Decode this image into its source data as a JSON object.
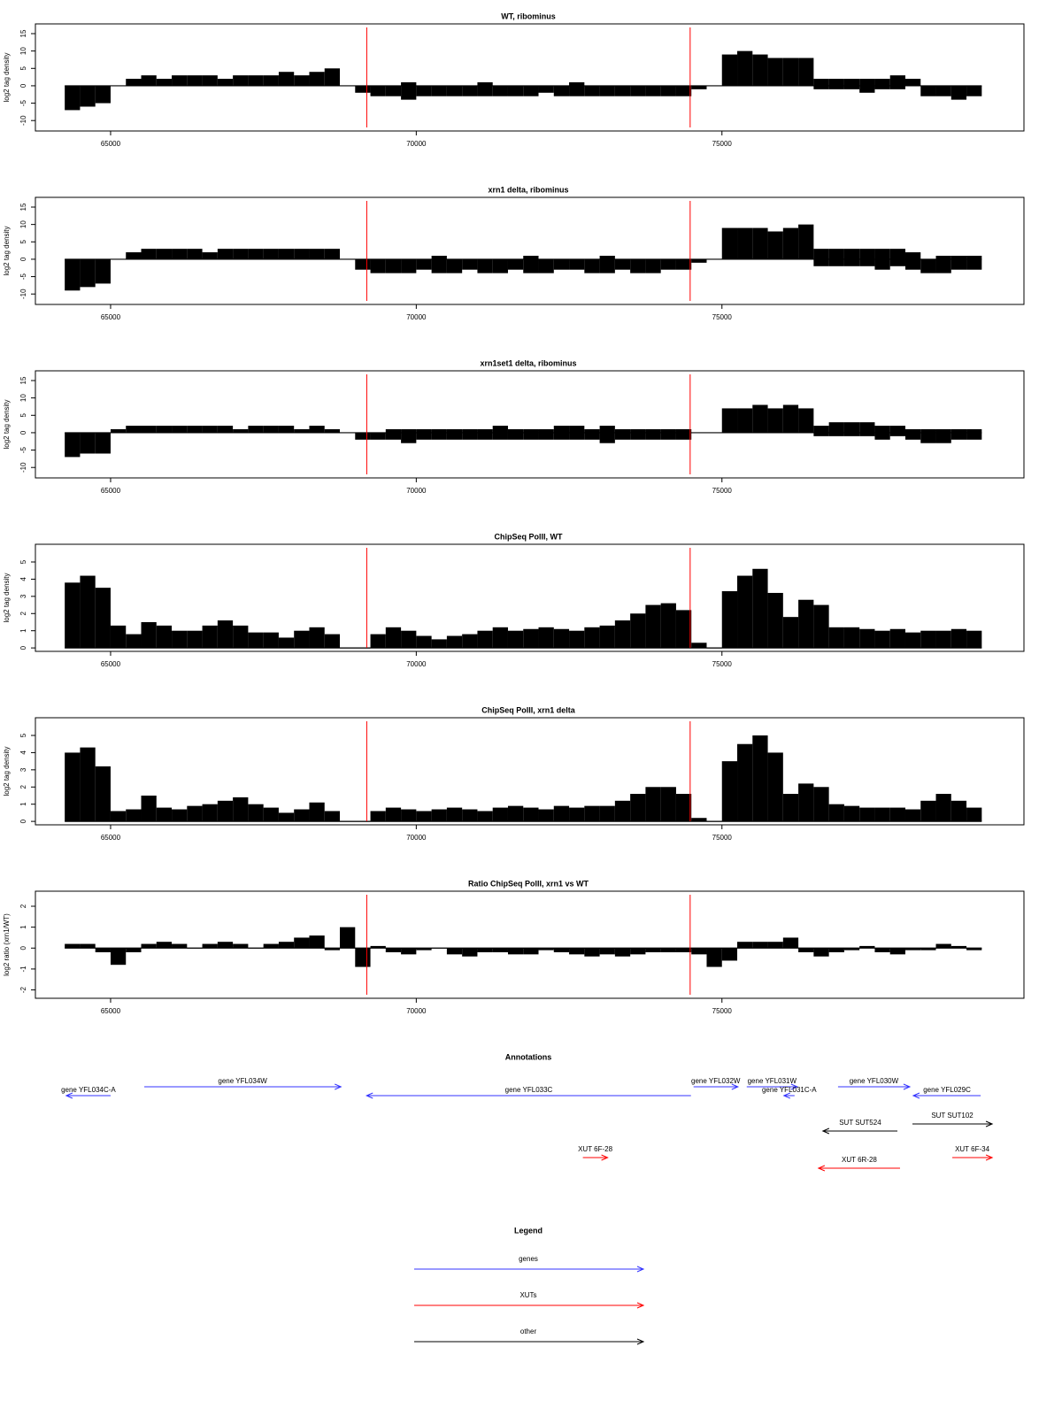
{
  "chart_data": [
    {
      "type": "bar",
      "title": "WT, ribominus",
      "y_label": "log2 tag density",
      "x": [
        64375,
        64625,
        64875,
        65125,
        65375,
        65625,
        65875,
        66125,
        66375,
        66625,
        66875,
        67125,
        67375,
        67625,
        67875,
        68125,
        68375,
        68625,
        68875,
        69125,
        69375,
        69625,
        69875,
        70125,
        70375,
        70625,
        70875,
        71125,
        71375,
        71625,
        71875,
        72125,
        72375,
        72625,
        72875,
        73125,
        73375,
        73625,
        73875,
        74125,
        74375,
        74625,
        74875,
        75125,
        75375,
        75625,
        75875,
        76125,
        76375,
        76625,
        76875,
        77125,
        77375,
        77625,
        77875,
        78125,
        78375,
        78625,
        78875,
        79125
      ],
      "series": [
        {
          "color": "#000000",
          "values": [
            0,
            0,
            0,
            0,
            2,
            3,
            2,
            3,
            3,
            3,
            2,
            3,
            3,
            3,
            4,
            3,
            4,
            5,
            0,
            0,
            0,
            0,
            1,
            0,
            0,
            0,
            0,
            1,
            0,
            0,
            0,
            0,
            0,
            1,
            0,
            0,
            0,
            0,
            0,
            0,
            0,
            0,
            0,
            9,
            10,
            9,
            8,
            8,
            8,
            2,
            2,
            2,
            2,
            2,
            3,
            2,
            0,
            0,
            0,
            0
          ]
        },
        {
          "color": "#000000",
          "values": [
            -7,
            -6,
            -5,
            0,
            0,
            0,
            0,
            0,
            0,
            0,
            0,
            0,
            0,
            0,
            0,
            0,
            0,
            0,
            0,
            -2,
            -3,
            -3,
            -4,
            -3,
            -3,
            -3,
            -3,
            -3,
            -3,
            -3,
            -3,
            -2,
            -3,
            -3,
            -3,
            -3,
            -3,
            -3,
            -3,
            -3,
            -3,
            -1,
            0,
            0,
            0,
            0,
            0,
            0,
            0,
            -1,
            -1,
            -1,
            -2,
            -1,
            -1,
            0,
            -3,
            -3,
            -4,
            -3
          ]
        }
      ],
      "xlim": [
        63770,
        79940
      ],
      "xticks": [
        65000,
        70000,
        75000
      ],
      "ylim": [
        -13,
        17.8
      ],
      "yticks": [
        -10,
        -5,
        0,
        5,
        10,
        15
      ],
      "reference_lines": [
        69190,
        74480
      ],
      "reference_color": "#ff0000"
    },
    {
      "type": "bar",
      "title": "xrn1 delta, ribominus",
      "y_label": "log2 tag density",
      "x": [
        64375,
        64625,
        64875,
        65125,
        65375,
        65625,
        65875,
        66125,
        66375,
        66625,
        66875,
        67125,
        67375,
        67625,
        67875,
        68125,
        68375,
        68625,
        68875,
        69125,
        69375,
        69625,
        69875,
        70125,
        70375,
        70625,
        70875,
        71125,
        71375,
        71625,
        71875,
        72125,
        72375,
        72625,
        72875,
        73125,
        73375,
        73625,
        73875,
        74125,
        74375,
        74625,
        74875,
        75125,
        75375,
        75625,
        75875,
        76125,
        76375,
        76625,
        76875,
        77125,
        77375,
        77625,
        77875,
        78125,
        78375,
        78625,
        78875,
        79125
      ],
      "series": [
        {
          "color": "#000000",
          "values": [
            0,
            0,
            0,
            0,
            2,
            3,
            3,
            3,
            3,
            2,
            3,
            3,
            3,
            3,
            3,
            3,
            3,
            3,
            0,
            0,
            0,
            0,
            0,
            0,
            1,
            0,
            0,
            0,
            0,
            0,
            1,
            0,
            0,
            0,
            0,
            1,
            0,
            0,
            0,
            0,
            0,
            0,
            0,
            9,
            9,
            9,
            8,
            9,
            10,
            3,
            3,
            3,
            3,
            3,
            3,
            2,
            0,
            1,
            1,
            1
          ]
        },
        {
          "color": "#000000",
          "values": [
            -9,
            -8,
            -7,
            0,
            0,
            0,
            0,
            0,
            0,
            0,
            0,
            0,
            0,
            0,
            0,
            0,
            0,
            0,
            0,
            -3,
            -4,
            -4,
            -4,
            -3,
            -4,
            -4,
            -3,
            -4,
            -4,
            -3,
            -4,
            -4,
            -3,
            -3,
            -4,
            -4,
            -3,
            -4,
            -4,
            -3,
            -3,
            -1,
            0,
            0,
            0,
            0,
            0,
            0,
            0,
            -2,
            -2,
            -2,
            -2,
            -3,
            -2,
            -3,
            -4,
            -4,
            -3,
            -3
          ]
        }
      ],
      "xlim": [
        63770,
        79940
      ],
      "xticks": [
        65000,
        70000,
        75000
      ],
      "ylim": [
        -13,
        17.8
      ],
      "yticks": [
        -10,
        -5,
        0,
        5,
        10,
        15
      ],
      "reference_lines": [
        69190,
        74480
      ],
      "reference_color": "#ff0000"
    },
    {
      "type": "bar",
      "title": "xrn1set1 delta, ribominus",
      "y_label": "log2 tag density",
      "x": [
        64375,
        64625,
        64875,
        65125,
        65375,
        65625,
        65875,
        66125,
        66375,
        66625,
        66875,
        67125,
        67375,
        67625,
        67875,
        68125,
        68375,
        68625,
        68875,
        69125,
        69375,
        69625,
        69875,
        70125,
        70375,
        70625,
        70875,
        71125,
        71375,
        71625,
        71875,
        72125,
        72375,
        72625,
        72875,
        73125,
        73375,
        73625,
        73875,
        74125,
        74375,
        74625,
        74875,
        75125,
        75375,
        75625,
        75875,
        76125,
        76375,
        76625,
        76875,
        77125,
        77375,
        77625,
        77875,
        78125,
        78375,
        78625,
        78875,
        79125
      ],
      "series": [
        {
          "color": "#000000",
          "values": [
            0,
            0,
            0,
            1,
            2,
            2,
            2,
            2,
            2,
            2,
            2,
            1,
            2,
            2,
            2,
            1,
            2,
            1,
            0,
            0,
            0,
            1,
            1,
            1,
            1,
            1,
            1,
            1,
            2,
            1,
            1,
            1,
            2,
            2,
            1,
            2,
            1,
            1,
            1,
            1,
            1,
            0,
            0,
            7,
            7,
            8,
            7,
            8,
            7,
            2,
            3,
            3,
            3,
            2,
            2,
            1,
            1,
            1,
            1,
            1
          ]
        },
        {
          "color": "#000000",
          "values": [
            -7,
            -6,
            -6,
            0,
            0,
            0,
            0,
            0,
            0,
            0,
            0,
            0,
            0,
            0,
            0,
            0,
            0,
            0,
            0,
            -2,
            -2,
            -2,
            -3,
            -2,
            -2,
            -2,
            -2,
            -2,
            -2,
            -2,
            -2,
            -2,
            -2,
            -2,
            -2,
            -3,
            -2,
            -2,
            -2,
            -2,
            -2,
            0,
            0,
            0,
            0,
            0,
            0,
            0,
            0,
            -1,
            -1,
            -1,
            -1,
            -2,
            -1,
            -2,
            -3,
            -3,
            -2,
            -2
          ]
        }
      ],
      "xlim": [
        63770,
        79940
      ],
      "xticks": [
        65000,
        70000,
        75000
      ],
      "ylim": [
        -13,
        17.8
      ],
      "yticks": [
        -10,
        -5,
        0,
        5,
        10,
        15
      ],
      "reference_lines": [
        69190,
        74480
      ],
      "reference_color": "#ff0000"
    },
    {
      "type": "bar",
      "title": "ChipSeq PolII, WT",
      "y_label": "log2 tag density",
      "x": [
        64375,
        64625,
        64875,
        65125,
        65375,
        65625,
        65875,
        66125,
        66375,
        66625,
        66875,
        67125,
        67375,
        67625,
        67875,
        68125,
        68375,
        68625,
        68875,
        69125,
        69375,
        69625,
        69875,
        70125,
        70375,
        70625,
        70875,
        71125,
        71375,
        71625,
        71875,
        72125,
        72375,
        72625,
        72875,
        73125,
        73375,
        73625,
        73875,
        74125,
        74375,
        74625,
        74875,
        75125,
        75375,
        75625,
        75875,
        76125,
        76375,
        76625,
        76875,
        77125,
        77375,
        77625,
        77875,
        78125,
        78375,
        78625,
        78875,
        79125
      ],
      "color": "#000000",
      "values": [
        3.8,
        4.2,
        3.5,
        1.3,
        0.8,
        1.5,
        1.3,
        1.0,
        1.0,
        1.3,
        1.6,
        1.3,
        0.9,
        0.9,
        0.6,
        1.0,
        1.2,
        0.8,
        0,
        0,
        0.8,
        1.2,
        1.0,
        0.7,
        0.5,
        0.7,
        0.8,
        1.0,
        1.2,
        1.0,
        1.1,
        1.2,
        1.1,
        1.0,
        1.2,
        1.3,
        1.6,
        2.0,
        2.5,
        2.6,
        2.2,
        0.3,
        0,
        3.3,
        4.2,
        4.6,
        3.2,
        1.8,
        2.8,
        2.5,
        1.2,
        1.2,
        1.1,
        1.0,
        1.1,
        0.9,
        1.0,
        1.0,
        1.1,
        1.0
      ],
      "xlim": [
        63770,
        79940
      ],
      "xticks": [
        65000,
        70000,
        75000
      ],
      "ylim": [
        -0.2,
        6.03
      ],
      "yticks": [
        0,
        1,
        2,
        3,
        4,
        5
      ],
      "reference_lines": [
        69190,
        74480
      ],
      "reference_color": "#ff0000"
    },
    {
      "type": "bar",
      "title": "ChipSeq PolII, xrn1 delta",
      "y_label": "log2 tag density",
      "x": [
        64375,
        64625,
        64875,
        65125,
        65375,
        65625,
        65875,
        66125,
        66375,
        66625,
        66875,
        67125,
        67375,
        67625,
        67875,
        68125,
        68375,
        68625,
        68875,
        69125,
        69375,
        69625,
        69875,
        70125,
        70375,
        70625,
        70875,
        71125,
        71375,
        71625,
        71875,
        72125,
        72375,
        72625,
        72875,
        73125,
        73375,
        73625,
        73875,
        74125,
        74375,
        74625,
        74875,
        75125,
        75375,
        75625,
        75875,
        76125,
        76375,
        76625,
        76875,
        77125,
        77375,
        77625,
        77875,
        78125,
        78375,
        78625,
        78875,
        79125
      ],
      "color": "#000000",
      "values": [
        4.0,
        4.3,
        3.2,
        0.6,
        0.7,
        1.5,
        0.8,
        0.7,
        0.9,
        1.0,
        1.2,
        1.4,
        1.0,
        0.8,
        0.5,
        0.7,
        1.1,
        0.6,
        0,
        0,
        0.6,
        0.8,
        0.7,
        0.6,
        0.7,
        0.8,
        0.7,
        0.6,
        0.8,
        0.9,
        0.8,
        0.7,
        0.9,
        0.8,
        0.9,
        0.9,
        1.2,
        1.6,
        2.0,
        2.0,
        1.6,
        0.2,
        0,
        3.5,
        4.5,
        5.0,
        4.0,
        1.6,
        2.2,
        2.0,
        1.0,
        0.9,
        0.8,
        0.8,
        0.8,
        0.7,
        1.2,
        1.6,
        1.2,
        0.8
      ],
      "xlim": [
        63770,
        79940
      ],
      "xticks": [
        65000,
        70000,
        75000
      ],
      "ylim": [
        -0.2,
        6.03
      ],
      "yticks": [
        0,
        1,
        2,
        3,
        4,
        5
      ],
      "reference_lines": [
        69190,
        74480
      ],
      "reference_color": "#ff0000"
    },
    {
      "type": "bar",
      "title": "Ratio ChipSeq PolII, xrn1 vs WT",
      "y_label": "log2 ratio (xrn1/WT)",
      "x": [
        64375,
        64625,
        64875,
        65125,
        65375,
        65625,
        65875,
        66125,
        66375,
        66625,
        66875,
        67125,
        67375,
        67625,
        67875,
        68125,
        68375,
        68625,
        68875,
        69125,
        69375,
        69625,
        69875,
        70125,
        70375,
        70625,
        70875,
        71125,
        71375,
        71625,
        71875,
        72125,
        72375,
        72625,
        72875,
        73125,
        73375,
        73625,
        73875,
        74125,
        74375,
        74625,
        74875,
        75125,
        75375,
        75625,
        75875,
        76125,
        76375,
        76625,
        76875,
        77125,
        77375,
        77625,
        77875,
        78125,
        78375,
        78625,
        78875,
        79125
      ],
      "color": "#000000",
      "values": [
        0.2,
        0.2,
        -0.2,
        -0.8,
        -0.2,
        0.2,
        0.3,
        0.2,
        0,
        0.2,
        0.3,
        0.2,
        0,
        0.2,
        0.3,
        0.5,
        0.6,
        -0.1,
        1.0,
        -0.9,
        0.1,
        -0.2,
        -0.3,
        -0.1,
        0,
        -0.3,
        -0.4,
        -0.2,
        -0.2,
        -0.3,
        -0.3,
        -0.1,
        -0.2,
        -0.3,
        -0.4,
        -0.3,
        -0.4,
        -0.3,
        -0.2,
        -0.2,
        -0.2,
        -0.3,
        -0.9,
        -0.6,
        0.3,
        0.3,
        0.3,
        0.5,
        -0.2,
        -0.4,
        -0.2,
        -0.1,
        0.1,
        -0.2,
        -0.3,
        -0.1,
        -0.1,
        0.2,
        0.1,
        -0.1
      ],
      "xlim": [
        63770,
        79940
      ],
      "xticks": [
        65000,
        70000,
        75000
      ],
      "ylim": [
        -2.4,
        2.72
      ],
      "yticks": [
        -2,
        -1,
        0,
        1,
        2
      ],
      "reference_lines": [
        69190,
        74480
      ],
      "reference_color": "#ff0000"
    }
  ],
  "annotations": {
    "title": "Annotations",
    "features": [
      {
        "label": "gene YFL034C-A",
        "start": 64275,
        "end": 65000,
        "strand": "-",
        "color": "#3333ff"
      },
      {
        "label": "gene YFL034W",
        "start": 65551,
        "end": 68768,
        "strand": "+",
        "color": "#3333ff"
      },
      {
        "label": "gene YFL033C",
        "start": 69188,
        "end": 74493,
        "strand": "-",
        "color": "#3333ff"
      },
      {
        "label": "gene YFL032W",
        "start": 74536,
        "end": 75261,
        "strand": "+",
        "color": "#3333ff"
      },
      {
        "label": "gene YFL031W",
        "start": 75406,
        "end": 76232,
        "strand": "+",
        "color": "#3333ff"
      },
      {
        "label": "gene YFL031C-A",
        "start": 76014,
        "end": 76188,
        "strand": "-",
        "color": "#3333ff"
      },
      {
        "label": "gene YFL030W",
        "start": 76899,
        "end": 78072,
        "strand": "+",
        "color": "#3333ff"
      },
      {
        "label": "gene YFL029C",
        "start": 78130,
        "end": 79232,
        "strand": "-",
        "color": "#3333ff"
      },
      {
        "label": "SUT SUT524",
        "start": 76652,
        "end": 77870,
        "strand": "-",
        "color": "#000000"
      },
      {
        "label": "SUT SUT102",
        "start": 78116,
        "end": 79420,
        "strand": "+",
        "color": "#000000"
      },
      {
        "label": "XUT 6F-28",
        "start": 72725,
        "end": 73130,
        "strand": "+",
        "color": "#ff0000"
      },
      {
        "label": "XUT 6R-28",
        "start": 76580,
        "end": 77913,
        "strand": "-",
        "color": "#ff0000"
      },
      {
        "label": "XUT 6F-34",
        "start": 78768,
        "end": 79420,
        "strand": "+",
        "color": "#ff0000"
      }
    ]
  },
  "legend": {
    "title": "Legend",
    "entries": [
      {
        "label": "genes",
        "color": "#3333ff"
      },
      {
        "label": "XUTs",
        "color": "#ff0000"
      },
      {
        "label": "other",
        "color": "#000000"
      }
    ]
  }
}
